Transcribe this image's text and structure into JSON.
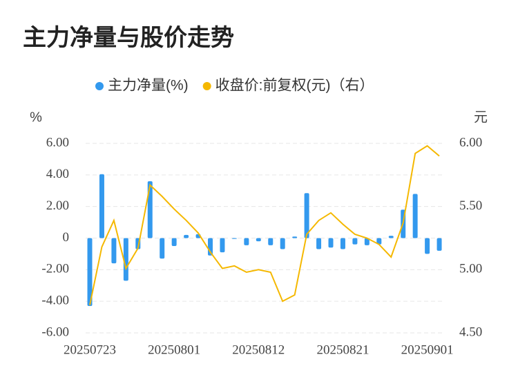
{
  "chart_data": {
    "type": "bar_line",
    "title": "主力净量与股价走势",
    "y_label": "%",
    "y2_label": "元",
    "categories": [
      "20250723",
      null,
      null,
      null,
      null,
      null,
      null,
      "20250801",
      null,
      null,
      null,
      null,
      null,
      null,
      "20250812",
      null,
      null,
      null,
      null,
      null,
      null,
      "20250821",
      null,
      null,
      null,
      null,
      null,
      null,
      "20250901",
      null
    ],
    "series": [
      {
        "name": "主力净量(%)",
        "type": "bar",
        "color": "#3399ee",
        "values": [
          -4.3,
          4.05,
          -1.6,
          -2.7,
          -0.7,
          3.6,
          -1.3,
          -0.5,
          0.2,
          0.25,
          -1.1,
          -0.9,
          -0.05,
          -0.45,
          -0.2,
          -0.45,
          -0.7,
          0.1,
          2.85,
          -0.7,
          -0.6,
          -0.7,
          -0.4,
          -0.45,
          -0.4,
          0.15,
          1.8,
          2.8,
          -1.0,
          -0.8
        ]
      },
      {
        "name": "收盘价:前复权(元)（右）",
        "type": "line",
        "axis": "y2",
        "color": "#f5b800",
        "values": [
          4.72,
          5.18,
          5.39,
          5.01,
          5.17,
          5.67,
          5.58,
          5.48,
          5.39,
          5.29,
          5.14,
          5.01,
          5.03,
          4.98,
          5.0,
          4.98,
          4.75,
          4.8,
          5.28,
          5.39,
          5.45,
          5.36,
          5.28,
          5.25,
          5.2,
          5.1,
          5.37,
          5.92,
          5.98,
          5.9
        ]
      }
    ],
    "ylim": [
      -6,
      6
    ],
    "yticks": [
      {
        "value": -6,
        "label": "-6.00"
      },
      {
        "value": -4,
        "label": "-4.00"
      },
      {
        "value": -2,
        "label": "-2.00"
      },
      0,
      {
        "value": 2,
        "label": "2.00"
      },
      {
        "value": 4,
        "label": "4.00"
      },
      {
        "value": 6,
        "label": "6.00"
      }
    ],
    "y2lim": [
      4.5,
      6
    ],
    "y2ticks": [
      {
        "value": 4.5,
        "label": "4.50"
      },
      {
        "value": 5,
        "label": "5.00"
      },
      {
        "value": 5.5,
        "label": "5.50"
      },
      {
        "value": 6,
        "label": "6.00"
      }
    ],
    "grid": true,
    "legend": "top"
  }
}
